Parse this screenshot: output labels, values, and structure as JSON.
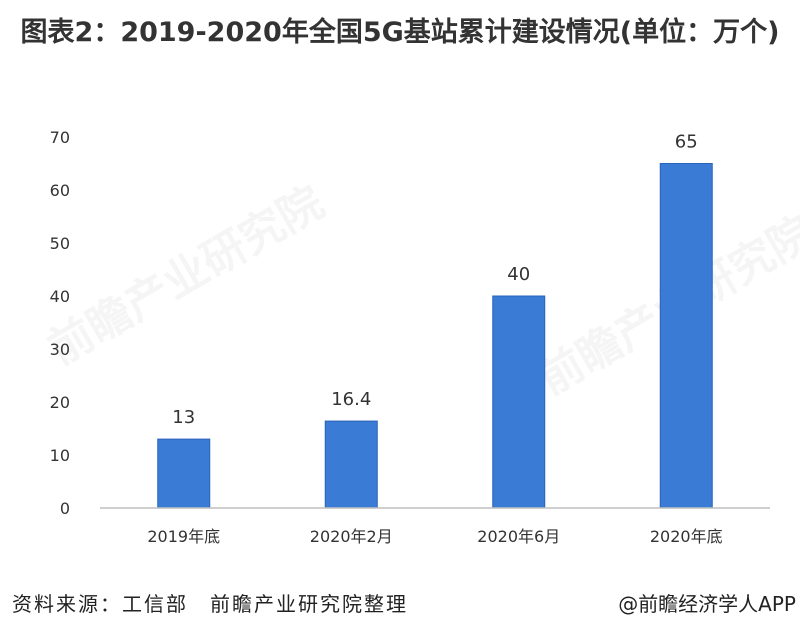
{
  "title": "图表2：2019-2020年全国5G基站累计建设情况(单位：万个)",
  "watermark_text": "前瞻产业研究院",
  "source_label": "资料来源：工信部　前瞻产业研究院整理",
  "credit": "@前瞻经济学人APP",
  "colors": {
    "bar": "#3a7bd5",
    "bar_stroke": "#2a63b8",
    "axis": "#bfbfbf",
    "text": "#333333"
  },
  "chart_data": {
    "type": "bar",
    "title": "图表2：2019-2020年全国5G基站累计建设情况(单位：万个)",
    "categories": [
      "2019年底",
      "2020年2月",
      "2020年6月",
      "2020年底"
    ],
    "values": [
      13,
      16.4,
      40,
      65
    ],
    "data_labels": [
      "13",
      "16.4",
      "40",
      "65"
    ],
    "yticks": [
      0,
      10,
      20,
      30,
      40,
      50,
      60,
      70
    ],
    "ylim": [
      0,
      70
    ],
    "xlabel": "",
    "ylabel": "",
    "grid": false,
    "legend": "none"
  }
}
